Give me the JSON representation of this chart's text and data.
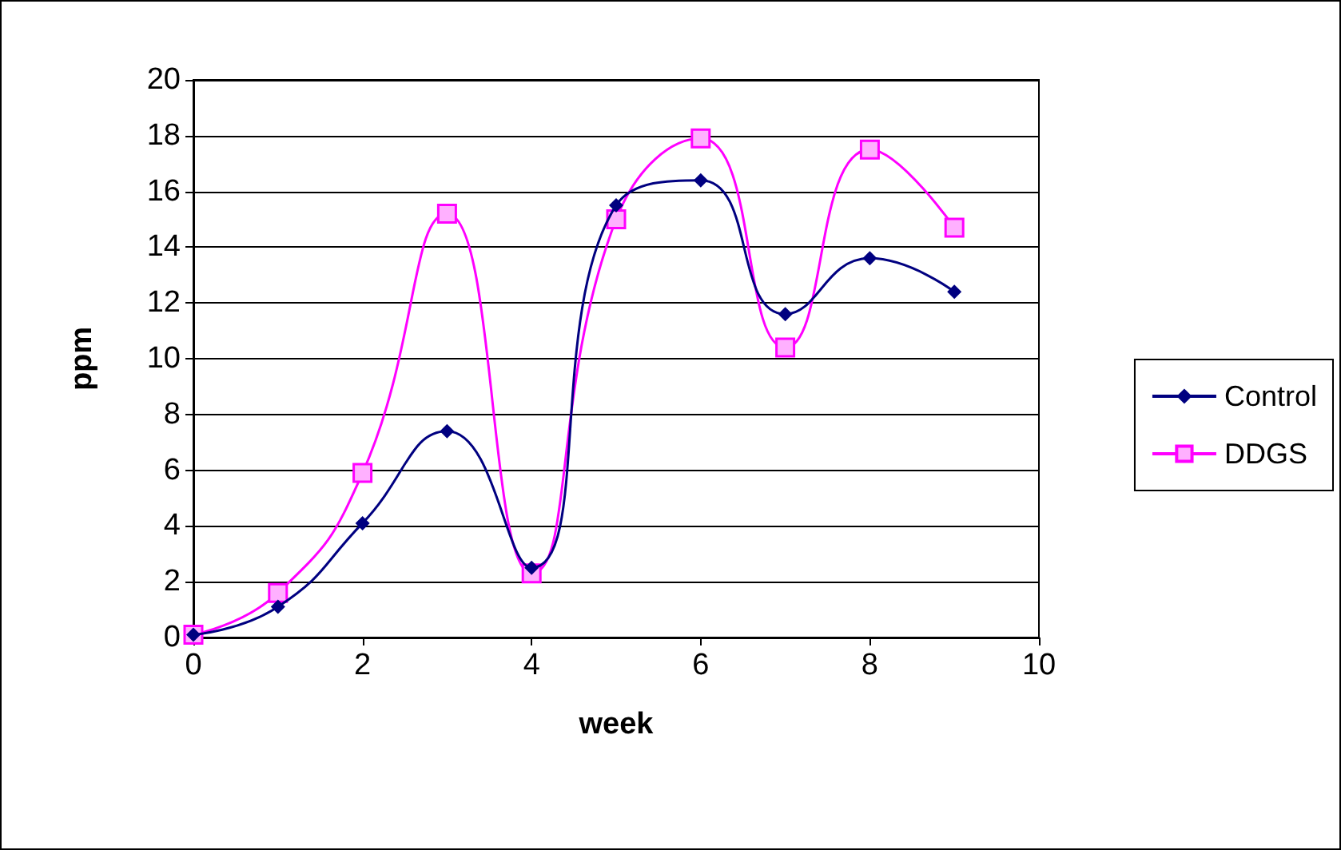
{
  "chart_data": {
    "type": "line",
    "xlabel": "week",
    "ylabel": "ppm",
    "x": [
      0,
      1,
      2,
      3,
      4,
      5,
      6,
      7,
      8,
      9
    ],
    "xlim": [
      0,
      10
    ],
    "xticks": [
      0,
      2,
      4,
      6,
      8,
      10
    ],
    "ylim": [
      0,
      20
    ],
    "yticks": [
      0,
      2,
      4,
      6,
      8,
      10,
      12,
      14,
      16,
      18,
      20
    ],
    "grid": "y",
    "legend": "right",
    "line_style": "solid",
    "series": [
      {
        "name": "Control",
        "color": "#000080",
        "marker": "diamond",
        "values": [
          0.1,
          1.1,
          4.1,
          7.4,
          2.5,
          15.5,
          16.4,
          11.6,
          13.6,
          12.4
        ]
      },
      {
        "name": "DDGS",
        "color": "#ff00ff",
        "marker": "square",
        "values": [
          0.1,
          1.6,
          5.9,
          15.2,
          2.3,
          15.0,
          17.9,
          10.4,
          17.5,
          14.7
        ]
      }
    ]
  }
}
